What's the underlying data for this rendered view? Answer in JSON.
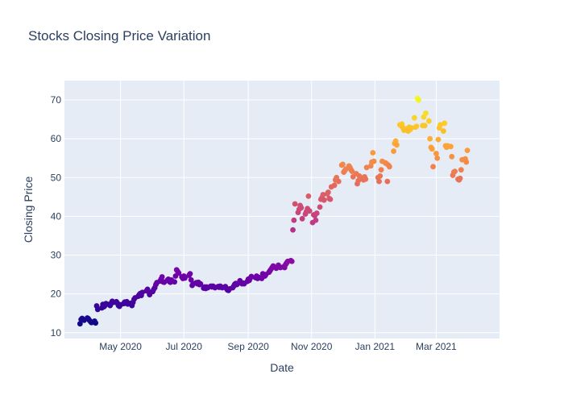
{
  "chart_data": {
    "type": "scatter",
    "title": "Stocks Closing Price Variation",
    "xlabel": "Date",
    "ylabel": "Closing Price",
    "xlim": [
      "2020-03-08",
      "2021-05-01"
    ],
    "ylim": [
      8.5,
      75
    ],
    "x_ticks": [
      "2020-05-01",
      "2020-07-01",
      "2020-09-01",
      "2020-11-01",
      "2021-01-01",
      "2021-03-01"
    ],
    "x_tick_labels": [
      "May 2020",
      "Jul 2020",
      "Sep 2020",
      "Nov 2020",
      "Jan 2021",
      "Mar 2021"
    ],
    "y_ticks": [
      10,
      20,
      30,
      40,
      50,
      60,
      70
    ],
    "grid": true,
    "color_scale": "plasma",
    "color_range": [
      12,
      70.5
    ],
    "colors": {
      "plot_bg": "#e5ecf6",
      "grid": "#ffffff",
      "text": "#2a3f5f"
    },
    "points": [
      {
        "x": "2020-03-23",
        "y": 12.3
      },
      {
        "x": "2020-03-24",
        "y": 13.4
      },
      {
        "x": "2020-03-25",
        "y": 13.7
      },
      {
        "x": "2020-03-26",
        "y": 13.4
      },
      {
        "x": "2020-03-27",
        "y": 13.2
      },
      {
        "x": "2020-03-30",
        "y": 13.8
      },
      {
        "x": "2020-03-31",
        "y": 13.6
      },
      {
        "x": "2020-04-01",
        "y": 13.2
      },
      {
        "x": "2020-04-02",
        "y": 12.9
      },
      {
        "x": "2020-04-03",
        "y": 12.6
      },
      {
        "x": "2020-04-06",
        "y": 13.0
      },
      {
        "x": "2020-04-07",
        "y": 12.5
      },
      {
        "x": "2020-04-08",
        "y": 16.9
      },
      {
        "x": "2020-04-09",
        "y": 16.0
      },
      {
        "x": "2020-04-13",
        "y": 16.4
      },
      {
        "x": "2020-04-14",
        "y": 17.3
      },
      {
        "x": "2020-04-15",
        "y": 16.7
      },
      {
        "x": "2020-04-16",
        "y": 17.0
      },
      {
        "x": "2020-04-17",
        "y": 17.5
      },
      {
        "x": "2020-04-20",
        "y": 17.3
      },
      {
        "x": "2020-04-21",
        "y": 17.0
      },
      {
        "x": "2020-04-22",
        "y": 17.6
      },
      {
        "x": "2020-04-23",
        "y": 18.1
      },
      {
        "x": "2020-04-24",
        "y": 17.8
      },
      {
        "x": "2020-04-27",
        "y": 18.0
      },
      {
        "x": "2020-04-28",
        "y": 17.6
      },
      {
        "x": "2020-04-29",
        "y": 17.0
      },
      {
        "x": "2020-04-30",
        "y": 16.8
      },
      {
        "x": "2020-05-01",
        "y": 17.2
      },
      {
        "x": "2020-05-04",
        "y": 17.5
      },
      {
        "x": "2020-05-05",
        "y": 17.9
      },
      {
        "x": "2020-05-06",
        "y": 17.6
      },
      {
        "x": "2020-05-07",
        "y": 18.0
      },
      {
        "x": "2020-05-08",
        "y": 17.4
      },
      {
        "x": "2020-05-11",
        "y": 17.6
      },
      {
        "x": "2020-05-12",
        "y": 17.0
      },
      {
        "x": "2020-05-13",
        "y": 17.8
      },
      {
        "x": "2020-05-14",
        "y": 18.6
      },
      {
        "x": "2020-05-15",
        "y": 19.0
      },
      {
        "x": "2020-05-18",
        "y": 19.4
      },
      {
        "x": "2020-05-19",
        "y": 19.8
      },
      {
        "x": "2020-05-20",
        "y": 20.1
      },
      {
        "x": "2020-05-21",
        "y": 19.6
      },
      {
        "x": "2020-05-22",
        "y": 20.4
      },
      {
        "x": "2020-05-26",
        "y": 20.8
      },
      {
        "x": "2020-05-27",
        "y": 21.2
      },
      {
        "x": "2020-05-28",
        "y": 20.6
      },
      {
        "x": "2020-05-29",
        "y": 19.8
      },
      {
        "x": "2020-06-01",
        "y": 20.6
      },
      {
        "x": "2020-06-02",
        "y": 21.2
      },
      {
        "x": "2020-06-03",
        "y": 21.6
      },
      {
        "x": "2020-06-04",
        "y": 22.4
      },
      {
        "x": "2020-06-05",
        "y": 22.9
      },
      {
        "x": "2020-06-08",
        "y": 23.3
      },
      {
        "x": "2020-06-09",
        "y": 23.8
      },
      {
        "x": "2020-06-10",
        "y": 24.4
      },
      {
        "x": "2020-06-11",
        "y": 23.1
      },
      {
        "x": "2020-06-12",
        "y": 23.0
      },
      {
        "x": "2020-06-15",
        "y": 23.5
      },
      {
        "x": "2020-06-16",
        "y": 23.8
      },
      {
        "x": "2020-06-17",
        "y": 23.2
      },
      {
        "x": "2020-06-18",
        "y": 23.0
      },
      {
        "x": "2020-06-19",
        "y": 23.6
      },
      {
        "x": "2020-06-22",
        "y": 23.1
      },
      {
        "x": "2020-06-23",
        "y": 24.6
      },
      {
        "x": "2020-06-24",
        "y": 26.2
      },
      {
        "x": "2020-06-25",
        "y": 25.8
      },
      {
        "x": "2020-06-26",
        "y": 25.4
      },
      {
        "x": "2020-06-29",
        "y": 24.4
      },
      {
        "x": "2020-06-30",
        "y": 24.0
      },
      {
        "x": "2020-07-01",
        "y": 24.6
      },
      {
        "x": "2020-07-02",
        "y": 24.1
      },
      {
        "x": "2020-07-06",
        "y": 24.8
      },
      {
        "x": "2020-07-07",
        "y": 25.2
      },
      {
        "x": "2020-07-08",
        "y": 23.6
      },
      {
        "x": "2020-07-09",
        "y": 22.2
      },
      {
        "x": "2020-07-10",
        "y": 22.6
      },
      {
        "x": "2020-07-13",
        "y": 22.9
      },
      {
        "x": "2020-07-14",
        "y": 22.6
      },
      {
        "x": "2020-07-15",
        "y": 23.0
      },
      {
        "x": "2020-07-16",
        "y": 22.4
      },
      {
        "x": "2020-07-17",
        "y": 22.6
      },
      {
        "x": "2020-07-20",
        "y": 21.5
      },
      {
        "x": "2020-07-21",
        "y": 21.8
      },
      {
        "x": "2020-07-22",
        "y": 21.4
      },
      {
        "x": "2020-07-23",
        "y": 21.8
      },
      {
        "x": "2020-07-24",
        "y": 21.6
      },
      {
        "x": "2020-07-27",
        "y": 22.0
      },
      {
        "x": "2020-07-28",
        "y": 21.8
      },
      {
        "x": "2020-07-29",
        "y": 22.0
      },
      {
        "x": "2020-07-30",
        "y": 21.8
      },
      {
        "x": "2020-07-31",
        "y": 21.6
      },
      {
        "x": "2020-08-03",
        "y": 21.9
      },
      {
        "x": "2020-08-04",
        "y": 21.7
      },
      {
        "x": "2020-08-05",
        "y": 22.0
      },
      {
        "x": "2020-08-06",
        "y": 21.8
      },
      {
        "x": "2020-08-07",
        "y": 21.6
      },
      {
        "x": "2020-08-10",
        "y": 21.9
      },
      {
        "x": "2020-08-11",
        "y": 21.4
      },
      {
        "x": "2020-08-12",
        "y": 21.0
      },
      {
        "x": "2020-08-13",
        "y": 20.9
      },
      {
        "x": "2020-08-14",
        "y": 21.3
      },
      {
        "x": "2020-08-17",
        "y": 21.6
      },
      {
        "x": "2020-08-18",
        "y": 22.0
      },
      {
        "x": "2020-08-19",
        "y": 22.5
      },
      {
        "x": "2020-08-20",
        "y": 22.7
      },
      {
        "x": "2020-08-21",
        "y": 22.4
      },
      {
        "x": "2020-08-24",
        "y": 23.4
      },
      {
        "x": "2020-08-25",
        "y": 22.8
      },
      {
        "x": "2020-08-26",
        "y": 22.6
      },
      {
        "x": "2020-08-27",
        "y": 22.8
      },
      {
        "x": "2020-08-28",
        "y": 22.6
      },
      {
        "x": "2020-08-31",
        "y": 23.2
      },
      {
        "x": "2020-09-01",
        "y": 23.8
      },
      {
        "x": "2020-09-02",
        "y": 23.5
      },
      {
        "x": "2020-09-03",
        "y": 24.1
      },
      {
        "x": "2020-09-04",
        "y": 24.5
      },
      {
        "x": "2020-09-08",
        "y": 24.2
      },
      {
        "x": "2020-09-09",
        "y": 24.6
      },
      {
        "x": "2020-09-10",
        "y": 24.0
      },
      {
        "x": "2020-09-11",
        "y": 24.3
      },
      {
        "x": "2020-09-14",
        "y": 24.0
      },
      {
        "x": "2020-09-15",
        "y": 25.2
      },
      {
        "x": "2020-09-16",
        "y": 25.0
      },
      {
        "x": "2020-09-17",
        "y": 24.6
      },
      {
        "x": "2020-09-18",
        "y": 25.0
      },
      {
        "x": "2020-09-21",
        "y": 25.6
      },
      {
        "x": "2020-09-22",
        "y": 26.0
      },
      {
        "x": "2020-09-23",
        "y": 26.4
      },
      {
        "x": "2020-09-24",
        "y": 26.8
      },
      {
        "x": "2020-09-25",
        "y": 27.2
      },
      {
        "x": "2020-09-28",
        "y": 26.6
      },
      {
        "x": "2020-09-29",
        "y": 26.9
      },
      {
        "x": "2020-09-30",
        "y": 27.4
      },
      {
        "x": "2020-10-01",
        "y": 27.0
      },
      {
        "x": "2020-10-02",
        "y": 26.8
      },
      {
        "x": "2020-10-05",
        "y": 27.0
      },
      {
        "x": "2020-10-06",
        "y": 26.8
      },
      {
        "x": "2020-10-07",
        "y": 27.6
      },
      {
        "x": "2020-10-08",
        "y": 28.0
      },
      {
        "x": "2020-10-09",
        "y": 28.4
      },
      {
        "x": "2020-10-12",
        "y": 28.6
      },
      {
        "x": "2020-10-13",
        "y": 28.4
      },
      {
        "x": "2020-10-14",
        "y": 36.5
      },
      {
        "x": "2020-10-15",
        "y": 39.0
      },
      {
        "x": "2020-10-16",
        "y": 43.2
      },
      {
        "x": "2020-10-19",
        "y": 41.0
      },
      {
        "x": "2020-10-20",
        "y": 41.8
      },
      {
        "x": "2020-10-21",
        "y": 42.8
      },
      {
        "x": "2020-10-22",
        "y": 42.2
      },
      {
        "x": "2020-10-23",
        "y": 39.4
      },
      {
        "x": "2020-10-26",
        "y": 40.6
      },
      {
        "x": "2020-10-27",
        "y": 41.2
      },
      {
        "x": "2020-10-28",
        "y": 42.0
      },
      {
        "x": "2020-10-29",
        "y": 45.2
      },
      {
        "x": "2020-10-30",
        "y": 41.4
      },
      {
        "x": "2020-11-02",
        "y": 38.4
      },
      {
        "x": "2020-11-03",
        "y": 40.4
      },
      {
        "x": "2020-11-04",
        "y": 40.2
      },
      {
        "x": "2020-11-05",
        "y": 39.0
      },
      {
        "x": "2020-11-06",
        "y": 40.8
      },
      {
        "x": "2020-11-09",
        "y": 42.4
      },
      {
        "x": "2020-11-10",
        "y": 44.4
      },
      {
        "x": "2020-11-11",
        "y": 44.8
      },
      {
        "x": "2020-11-12",
        "y": 45.6
      },
      {
        "x": "2020-11-13",
        "y": 44.2
      },
      {
        "x": "2020-11-16",
        "y": 45.8
      },
      {
        "x": "2020-11-17",
        "y": 46.2
      },
      {
        "x": "2020-11-18",
        "y": 44.6
      },
      {
        "x": "2020-11-19",
        "y": 44.4
      },
      {
        "x": "2020-11-20",
        "y": 47.6
      },
      {
        "x": "2020-11-23",
        "y": 48.0
      },
      {
        "x": "2020-11-24",
        "y": 49.4
      },
      {
        "x": "2020-11-25",
        "y": 50.0
      },
      {
        "x": "2020-11-27",
        "y": 49.0
      },
      {
        "x": "2020-11-30",
        "y": 53.2
      },
      {
        "x": "2020-12-01",
        "y": 53.4
      },
      {
        "x": "2020-12-02",
        "y": 51.4
      },
      {
        "x": "2020-12-03",
        "y": 51.8
      },
      {
        "x": "2020-12-04",
        "y": 52.2
      },
      {
        "x": "2020-12-07",
        "y": 53.0
      },
      {
        "x": "2020-12-08",
        "y": 52.6
      },
      {
        "x": "2020-12-09",
        "y": 52.0
      },
      {
        "x": "2020-12-10",
        "y": 51.6
      },
      {
        "x": "2020-12-11",
        "y": 50.2
      },
      {
        "x": "2020-12-14",
        "y": 51.0
      },
      {
        "x": "2020-12-15",
        "y": 48.4
      },
      {
        "x": "2020-12-16",
        "y": 49.2
      },
      {
        "x": "2020-12-17",
        "y": 50.4
      },
      {
        "x": "2020-12-18",
        "y": 50.0
      },
      {
        "x": "2020-12-21",
        "y": 49.4
      },
      {
        "x": "2020-12-22",
        "y": 50.2
      },
      {
        "x": "2020-12-23",
        "y": 49.6
      },
      {
        "x": "2020-12-24",
        "y": 52.6
      },
      {
        "x": "2020-12-28",
        "y": 53.0
      },
      {
        "x": "2020-12-29",
        "y": 54.0
      },
      {
        "x": "2020-12-30",
        "y": 56.4
      },
      {
        "x": "2020-12-31",
        "y": 54.2
      },
      {
        "x": "2021-01-04",
        "y": 50.0
      },
      {
        "x": "2021-01-05",
        "y": 49.0
      },
      {
        "x": "2021-01-06",
        "y": 50.4
      },
      {
        "x": "2021-01-07",
        "y": 52.0
      },
      {
        "x": "2021-01-08",
        "y": 54.2
      },
      {
        "x": "2021-01-11",
        "y": 53.8
      },
      {
        "x": "2021-01-12",
        "y": 53.6
      },
      {
        "x": "2021-01-13",
        "y": 49.0
      },
      {
        "x": "2021-01-14",
        "y": 53.2
      },
      {
        "x": "2021-01-15",
        "y": 52.8
      },
      {
        "x": "2021-01-19",
        "y": 56.8
      },
      {
        "x": "2021-01-20",
        "y": 58.8
      },
      {
        "x": "2021-01-21",
        "y": 59.4
      },
      {
        "x": "2021-01-22",
        "y": 58.4
      },
      {
        "x": "2021-01-25",
        "y": 63.6
      },
      {
        "x": "2021-01-26",
        "y": 63.4
      },
      {
        "x": "2021-01-27",
        "y": 63.8
      },
      {
        "x": "2021-01-28",
        "y": 62.8
      },
      {
        "x": "2021-01-29",
        "y": 62.2
      },
      {
        "x": "2021-02-01",
        "y": 62.6
      },
      {
        "x": "2021-02-02",
        "y": 62.0
      },
      {
        "x": "2021-02-03",
        "y": 63.0
      },
      {
        "x": "2021-02-04",
        "y": 62.4
      },
      {
        "x": "2021-02-05",
        "y": 62.8
      },
      {
        "x": "2021-02-08",
        "y": 65.4
      },
      {
        "x": "2021-02-09",
        "y": 63.0
      },
      {
        "x": "2021-02-10",
        "y": 63.2
      },
      {
        "x": "2021-02-11",
        "y": 70.4
      },
      {
        "x": "2021-02-12",
        "y": 70.0
      },
      {
        "x": "2021-02-16",
        "y": 63.4
      },
      {
        "x": "2021-02-17",
        "y": 65.6
      },
      {
        "x": "2021-02-18",
        "y": 63.4
      },
      {
        "x": "2021-02-19",
        "y": 66.6
      },
      {
        "x": "2021-02-22",
        "y": 64.6
      },
      {
        "x": "2021-02-23",
        "y": 60.0
      },
      {
        "x": "2021-02-24",
        "y": 57.8
      },
      {
        "x": "2021-02-25",
        "y": 57.4
      },
      {
        "x": "2021-02-26",
        "y": 52.8
      },
      {
        "x": "2021-03-01",
        "y": 56.2
      },
      {
        "x": "2021-03-02",
        "y": 55.0
      },
      {
        "x": "2021-03-03",
        "y": 59.8
      },
      {
        "x": "2021-03-04",
        "y": 62.8
      },
      {
        "x": "2021-03-05",
        "y": 63.6
      },
      {
        "x": "2021-03-08",
        "y": 62.0
      },
      {
        "x": "2021-03-09",
        "y": 64.0
      },
      {
        "x": "2021-03-10",
        "y": 58.2
      },
      {
        "x": "2021-03-11",
        "y": 57.8
      },
      {
        "x": "2021-03-12",
        "y": 58.2
      },
      {
        "x": "2021-03-15",
        "y": 58.0
      },
      {
        "x": "2021-03-16",
        "y": 55.4
      },
      {
        "x": "2021-03-17",
        "y": 50.6
      },
      {
        "x": "2021-03-18",
        "y": 51.4
      },
      {
        "x": "2021-03-19",
        "y": 51.6
      },
      {
        "x": "2021-03-22",
        "y": 49.6
      },
      {
        "x": "2021-03-23",
        "y": 49.4
      },
      {
        "x": "2021-03-24",
        "y": 49.8
      },
      {
        "x": "2021-03-25",
        "y": 52.0
      },
      {
        "x": "2021-03-26",
        "y": 54.6
      },
      {
        "x": "2021-03-29",
        "y": 54.8
      },
      {
        "x": "2021-03-30",
        "y": 54.0
      },
      {
        "x": "2021-03-31",
        "y": 57.0
      }
    ]
  }
}
